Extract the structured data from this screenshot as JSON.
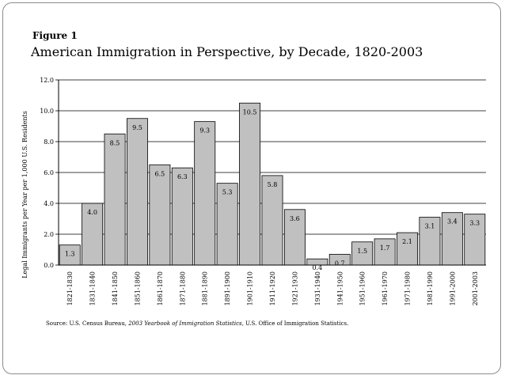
{
  "figure_label": "Figure 1",
  "title": "American Immigration in Perspective, by Decade, 1820-2003",
  "source": {
    "prefix": "Source: U.S. Census Bureau,",
    "publication": "2003 Yearbook of Immigration Statistics,",
    "suffix": "U.S. Office of Immigration Statistics."
  },
  "colors": {
    "bar_fill": "#c0c0c0",
    "bar_stroke": "#000000",
    "grid": "#000000"
  },
  "chart_data": {
    "type": "bar",
    "title": "American Immigration in Perspective, by Decade, 1820-2003",
    "xlabel": "",
    "ylabel": "Legal Immigrants per Year per 1,000 U.S. Residents",
    "ylim": [
      0,
      12
    ],
    "yticks": [
      "0.0",
      "2.0",
      "4.0",
      "6.0",
      "8.0",
      "10.0",
      "12.0"
    ],
    "grid": true,
    "legend": "none",
    "categories": [
      "1821-1830",
      "1831-1840",
      "1841-1850",
      "1851-1860",
      "1861-1870",
      "1871-1880",
      "1881-1890",
      "1891-1900",
      "1901-1910",
      "1911-1920",
      "1921-1930",
      "1931-1940",
      "1941-1950",
      "1951-1960",
      "1961-1970",
      "1971-1980",
      "1981-1990",
      "1991-2000",
      "2001-2003"
    ],
    "values": [
      1.3,
      4.0,
      8.5,
      9.5,
      6.5,
      6.3,
      9.3,
      5.3,
      10.5,
      5.8,
      3.6,
      0.4,
      0.7,
      1.5,
      1.7,
      2.1,
      3.1,
      3.4,
      3.3
    ],
    "data_labels": [
      "1.3",
      "4.0",
      "8.5",
      "9.5",
      "6.5",
      "6.3",
      "9.3",
      "5.3",
      "10.5",
      "5.8",
      "3.6",
      "0.4",
      "0.7",
      "1.5",
      "1.7",
      "2.1",
      "3.1",
      "3.4",
      "3.3"
    ]
  }
}
